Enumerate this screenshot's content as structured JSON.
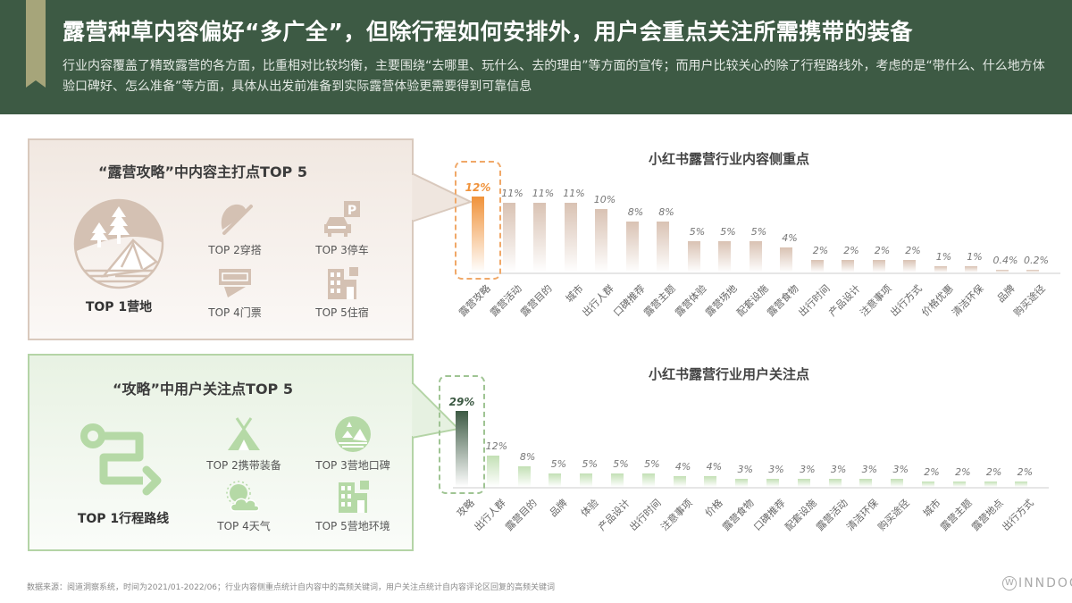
{
  "header": {
    "title": "露营种草内容偏好“多广全”，但除行程如何安排外，用户会重点关注所需携带的装备",
    "subtitle": "行业内容覆盖了精致露营的各方面，比重相对比较均衡，主要围绕“去哪里、玩什么、去的理由”等方面的宣传；而用户比较关心的除了行程路线外，考虑的是“带什么、什么地方体验口碑好、怎么准备”等方面，具体从出发前准备到实际露营体验更需要得到可靠信息"
  },
  "panels": {
    "content": {
      "title": "“露营攻略”中内容主打点TOP 5",
      "top1": "TOP 1营地",
      "top1_icon": "campsite-icon",
      "items": [
        {
          "label": "TOP 2穿搭",
          "icon": "hat-icon"
        },
        {
          "label": "TOP 3停车",
          "icon": "parking-car-icon"
        },
        {
          "label": "TOP 4门票",
          "icon": "ticket-icon"
        },
        {
          "label": "TOP 5住宿",
          "icon": "hotel-icon"
        }
      ],
      "color": "#d4c1b3"
    },
    "user": {
      "title": "“攻略”中用户关注点TOP 5",
      "top1": "TOP 1行程路线",
      "top1_icon": "route-icon",
      "items": [
        {
          "label": "TOP 2携带装备",
          "icon": "tent-icon"
        },
        {
          "label": "TOP 3营地口碑",
          "icon": "campsite-badge-icon"
        },
        {
          "label": "TOP 4天气",
          "icon": "weather-icon"
        },
        {
          "label": "TOP 5营地环境",
          "icon": "building-icon"
        }
      ],
      "color": "#b5d9a6"
    }
  },
  "chart_data": [
    {
      "type": "bar",
      "title": "小红书露营行业内容侧重点",
      "categories": [
        "露营攻略",
        "露营活动",
        "露营目的",
        "城市",
        "出行人群",
        "口碑推荐",
        "露营主题",
        "露营体验",
        "露营场地",
        "配套设施",
        "露营食物",
        "出行时间",
        "产品设计",
        "注意事项",
        "出行方式",
        "价格优惠",
        "清洁环保",
        "品牌",
        "购买途径"
      ],
      "values": [
        12,
        11,
        11,
        11,
        10,
        8,
        8,
        5,
        5,
        5,
        4,
        2,
        2,
        2,
        2,
        1,
        1,
        0.4,
        0.2
      ],
      "labels": [
        "12%",
        "11%",
        "11%",
        "11%",
        "10%",
        "8%",
        "8%",
        "5%",
        "5%",
        "5%",
        "4%",
        "2%",
        "2%",
        "2%",
        "2%",
        "1%",
        "1%",
        "0.4%",
        "0.2%"
      ],
      "highlight_index": 0,
      "highlight_color": "#f0923a",
      "bar_color": "#d9c2b3",
      "xlabel": "",
      "ylabel": "",
      "unit": "%",
      "grid": false
    },
    {
      "type": "bar",
      "title": "小红书露营行业用户关注点",
      "categories": [
        "攻略",
        "出行人群",
        "露营目的",
        "品牌",
        "体验",
        "产品设计",
        "出行时间",
        "注意事项",
        "价格",
        "露营食物",
        "口碑推荐",
        "配套设施",
        "露营活动",
        "清洁环保",
        "购买途径",
        "城市",
        "露营主题",
        "露营地点",
        "出行方式"
      ],
      "values": [
        29,
        12,
        8,
        5,
        5,
        5,
        5,
        4,
        4,
        3,
        3,
        3,
        3,
        3,
        3,
        2,
        2,
        2,
        2
      ],
      "labels": [
        "29%",
        "12%",
        "8%",
        "5%",
        "5%",
        "5%",
        "5%",
        "4%",
        "4%",
        "3%",
        "3%",
        "3%",
        "3%",
        "3%",
        "3%",
        "2%",
        "2%",
        "2%",
        "2%"
      ],
      "highlight_index": 0,
      "highlight_color": "#3d5a44",
      "bar_color": "#c3e0b5",
      "xlabel": "",
      "ylabel": "",
      "unit": "%",
      "grid": false
    }
  ],
  "footer": {
    "source": "数据来源：阅道洞察系统，时间为2021/01-2022/06；行业内容侧重点统计自内容中的高频关键词，用户关注点统计自内容评论区回复的高频关键词",
    "logo": "INNDOO",
    "logo_mark": "W"
  }
}
